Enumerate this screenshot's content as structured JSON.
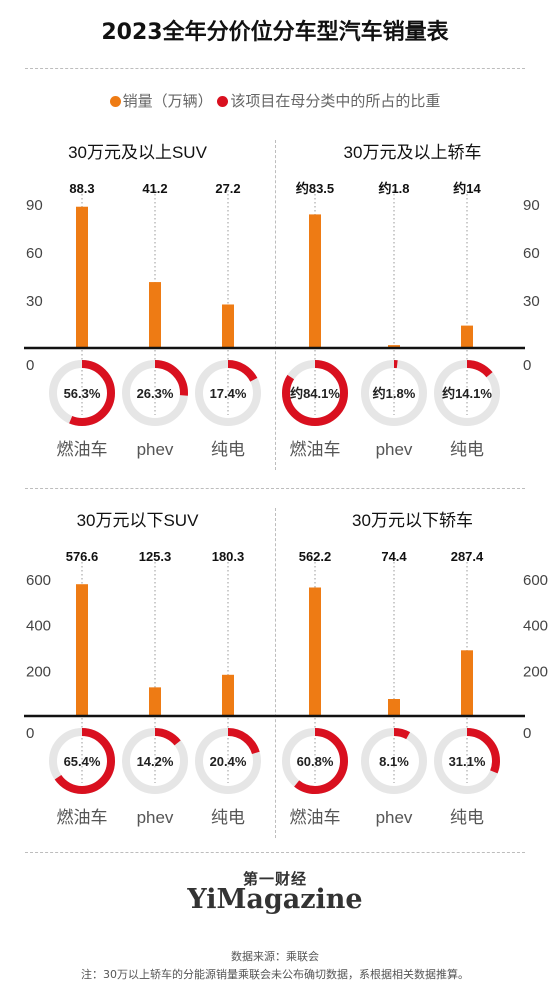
{
  "title": "2023全年分价位分车型汽车销量表",
  "legend": [
    {
      "label": "销量（万辆）",
      "color": "#ee7b14"
    },
    {
      "label": "该项目在母分类中的所占的比重",
      "color": "#d9101f"
    }
  ],
  "colors": {
    "bar": "#ee7b14",
    "ring": "#d9101f",
    "ring_track": "#e6e6e6",
    "axis": "#111111",
    "tick_text": "#444444"
  },
  "chart_data": [
    {
      "type": "bar",
      "title": "30万元及以上SUV",
      "categories": [
        "燃油车",
        "phev",
        "纯电"
      ],
      "values": [
        88.3,
        41.2,
        27.2
      ],
      "value_labels": [
        "88.3",
        "41.2",
        "27.2"
      ],
      "yticks": [
        "0",
        "30",
        "60",
        "90"
      ],
      "ylim": [
        0,
        100
      ],
      "axis_side": "left",
      "shares": [
        56.3,
        26.3,
        17.4
      ],
      "share_labels": [
        "56.3%",
        "26.3%",
        "17.4%"
      ]
    },
    {
      "type": "bar",
      "title": "30万元及以上轿车",
      "categories": [
        "燃油车",
        "phev",
        "纯电"
      ],
      "values": [
        83.5,
        1.8,
        14
      ],
      "value_labels": [
        "约83.5",
        "约1.8",
        "约14"
      ],
      "yticks": [
        "0",
        "30",
        "60",
        "90"
      ],
      "ylim": [
        0,
        100
      ],
      "axis_side": "right",
      "shares": [
        84.1,
        1.8,
        14.1
      ],
      "share_labels": [
        "约84.1%",
        "约1.8%",
        "约14.1%"
      ]
    },
    {
      "type": "bar",
      "title": "30万元以下SUV",
      "categories": [
        "燃油车",
        "phev",
        "纯电"
      ],
      "values": [
        576.6,
        125.3,
        180.3
      ],
      "value_labels": [
        "576.6",
        "125.3",
        "180.3"
      ],
      "yticks": [
        "0",
        "200",
        "400",
        "600"
      ],
      "ylim": [
        0,
        700
      ],
      "axis_side": "left",
      "shares": [
        65.4,
        14.2,
        20.4
      ],
      "share_labels": [
        "65.4%",
        "14.2%",
        "20.4%"
      ]
    },
    {
      "type": "bar",
      "title": "30万元以下轿车",
      "categories": [
        "燃油车",
        "phev",
        "纯电"
      ],
      "values": [
        562.2,
        74.4,
        287.4
      ],
      "value_labels": [
        "562.2",
        "74.4",
        "287.4"
      ],
      "yticks": [
        "0",
        "200",
        "400",
        "600"
      ],
      "ylim": [
        0,
        700
      ],
      "axis_side": "right",
      "shares": [
        60.8,
        8.1,
        31.1
      ],
      "share_labels": [
        "60.8%",
        "8.1%",
        "31.1%"
      ]
    }
  ],
  "logo": {
    "cn": "第一财经",
    "en": "YiMagazine"
  },
  "source": "数据来源：乘联会",
  "note": "注：30万以上轿车的分能源销量乘联会未公布确切数据，系根据相关数据推算。"
}
